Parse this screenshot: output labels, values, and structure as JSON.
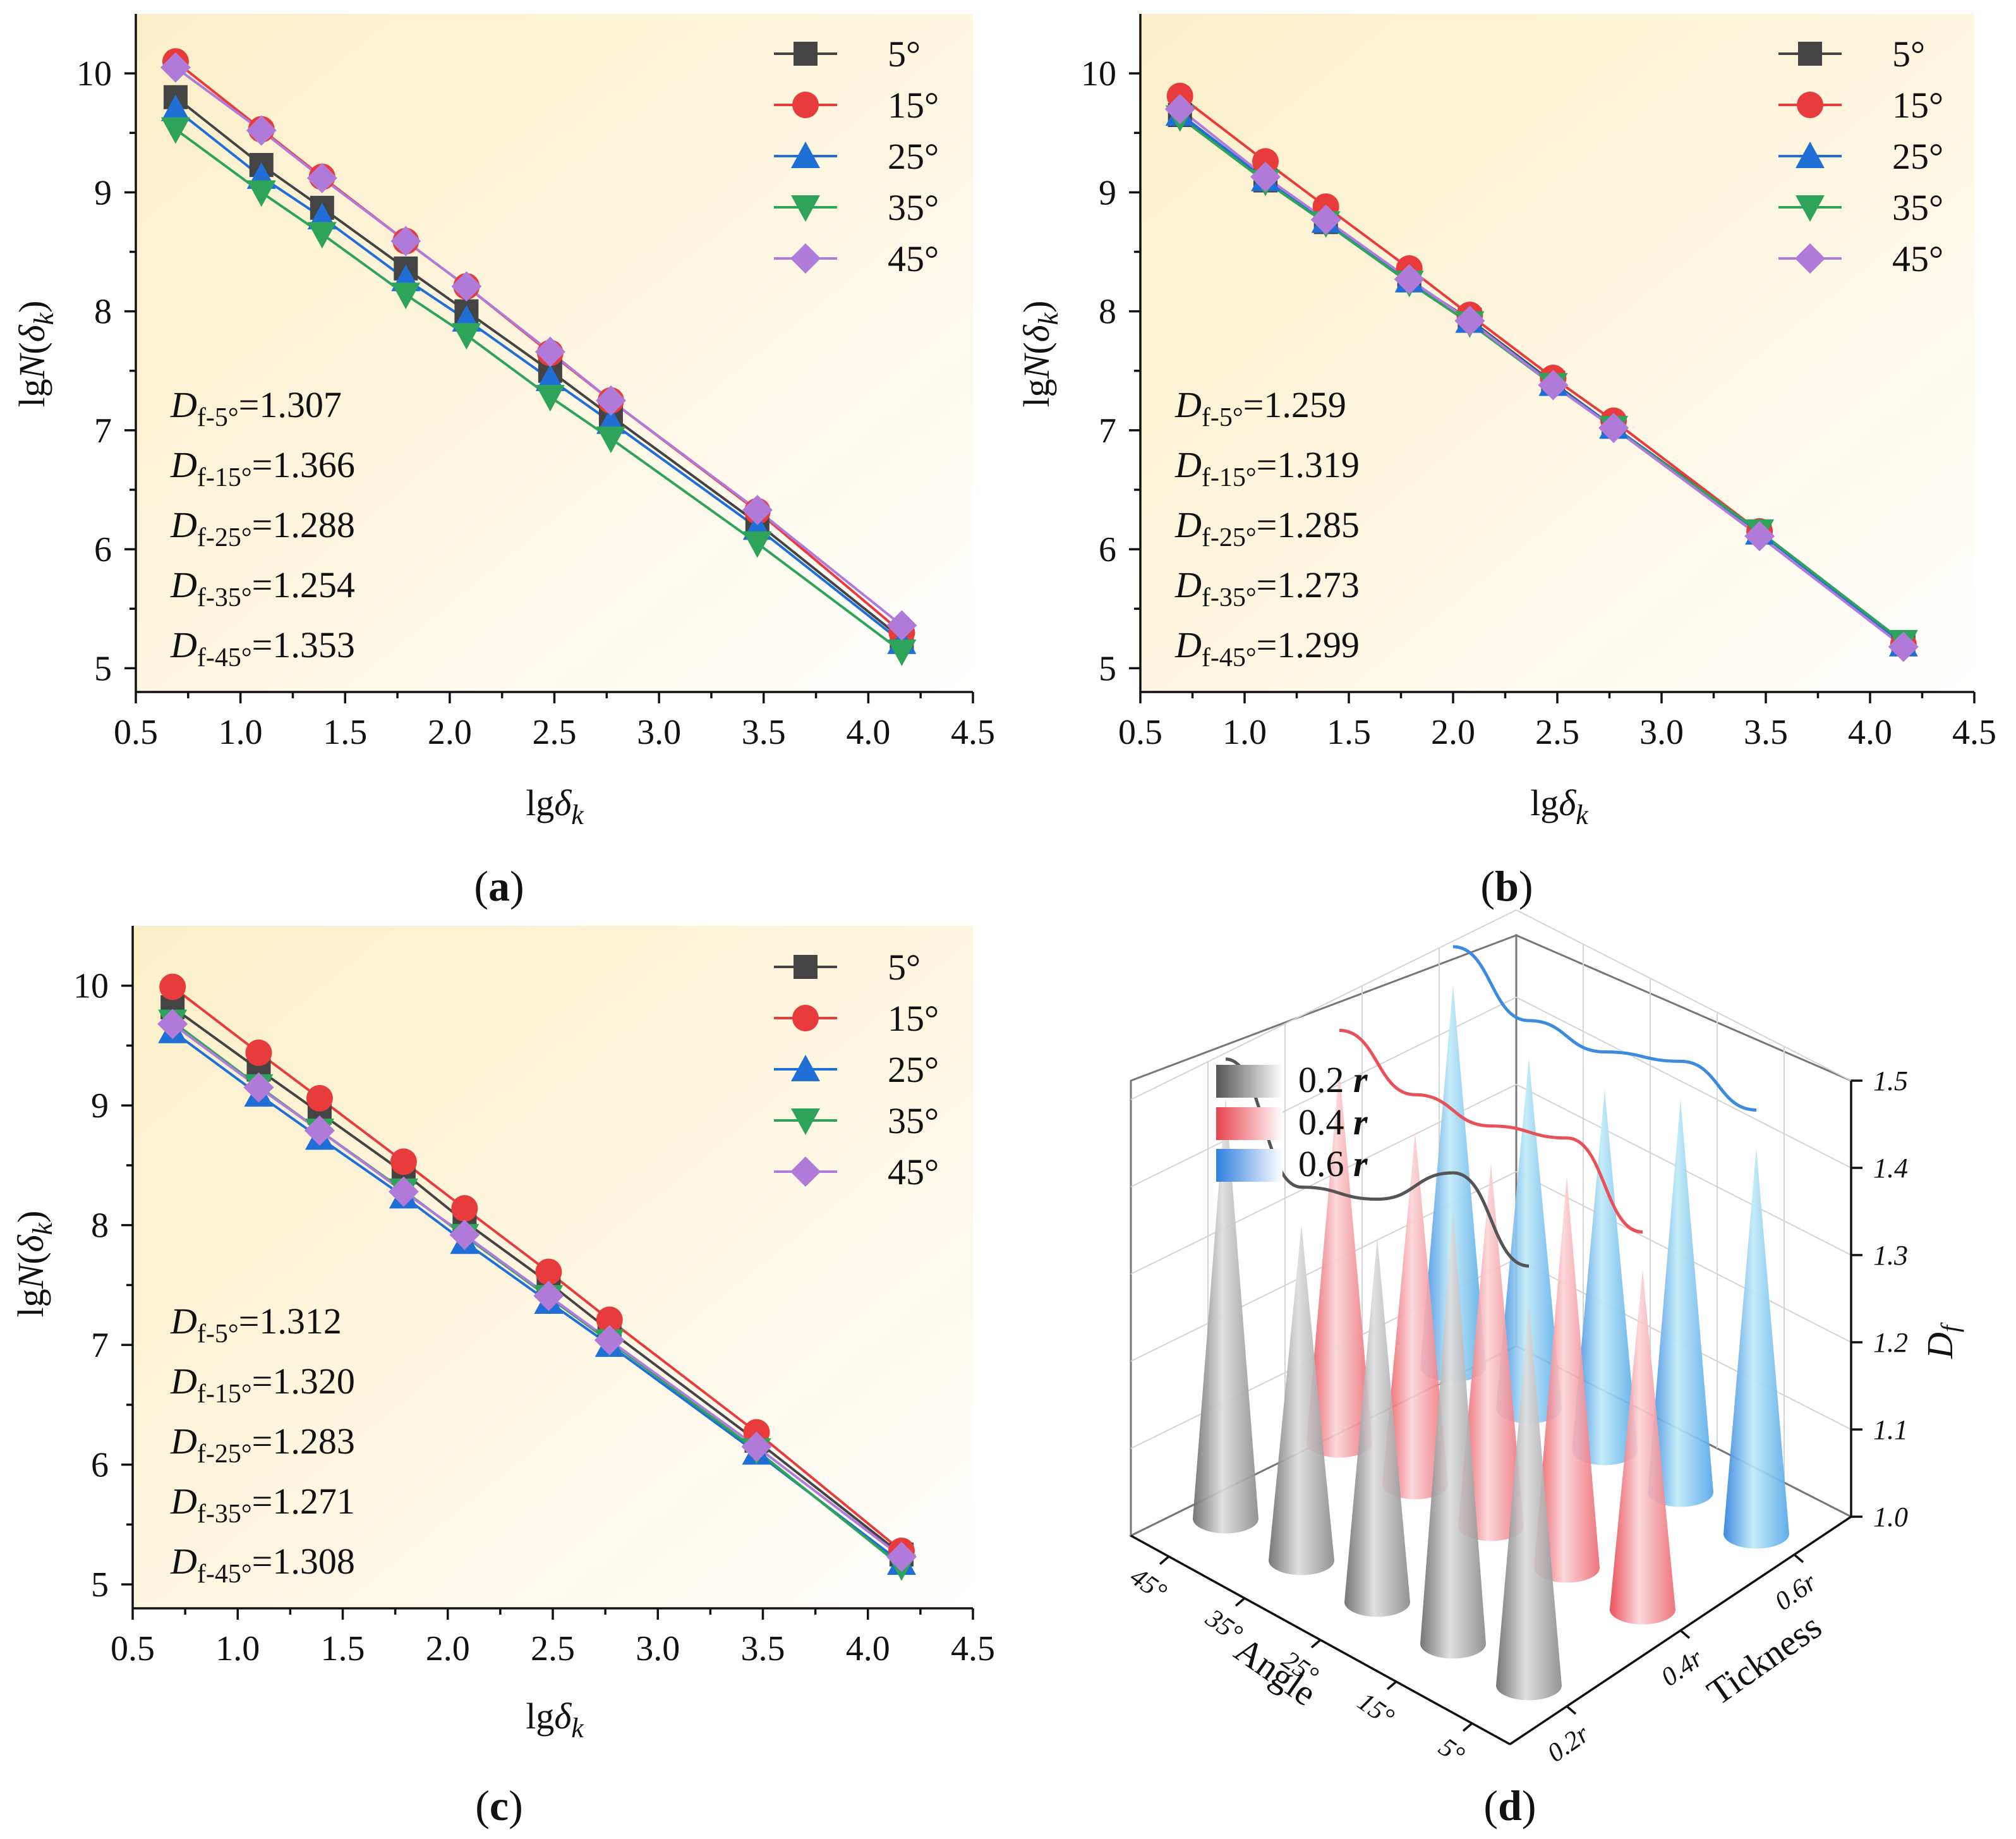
{
  "chart_data": [
    {
      "id": "a",
      "type": "line",
      "caption": "(a)",
      "xlabel": "lgδ_k",
      "ylabel": "lgN(δ_k)",
      "xlim": [
        0.5,
        4.5
      ],
      "ylim": [
        4.8,
        10.5
      ],
      "x_ticks": [
        "0.5",
        "1.0",
        "1.5",
        "2.0",
        "2.5",
        "3.0",
        "3.5",
        "4.0",
        "4.5"
      ],
      "y_ticks": [
        "5",
        "6",
        "7",
        "8",
        "9",
        "10"
      ],
      "x": [
        0.69,
        1.1,
        1.39,
        1.79,
        2.08,
        2.48,
        2.77,
        3.47,
        4.16
      ],
      "series": [
        {
          "name": "5°",
          "color": "#444444",
          "marker": "square",
          "values": [
            9.8,
            9.23,
            8.87,
            8.36,
            8.0,
            7.5,
            7.12,
            6.22,
            5.25
          ]
        },
        {
          "name": "15°",
          "color": "#e83b3b",
          "marker": "circle",
          "values": [
            10.1,
            9.53,
            9.13,
            8.59,
            8.21,
            7.65,
            7.25,
            6.32,
            5.3
          ]
        },
        {
          "name": "25°",
          "color": "#1f6fd6",
          "marker": "triangle-up",
          "values": [
            9.7,
            9.13,
            8.79,
            8.27,
            7.93,
            7.43,
            7.07,
            6.18,
            5.22
          ]
        },
        {
          "name": "35°",
          "color": "#2ea35a",
          "marker": "triangle-down",
          "values": [
            9.53,
            9.0,
            8.65,
            8.14,
            7.8,
            7.28,
            6.93,
            6.05,
            5.14
          ]
        },
        {
          "name": "45°",
          "color": "#b07ad9",
          "marker": "diamond",
          "values": [
            10.05,
            9.52,
            9.12,
            8.59,
            8.21,
            7.66,
            7.25,
            6.33,
            5.36
          ]
        }
      ],
      "df_labels": [
        {
          "sub": "f-5°",
          "value": "=1.307"
        },
        {
          "sub": "f-15°",
          "value": "=1.366"
        },
        {
          "sub": "f-25°",
          "value": "=1.288"
        },
        {
          "sub": "f-35°",
          "value": "=1.254"
        },
        {
          "sub": "f-45°",
          "value": "=1.353"
        }
      ]
    },
    {
      "id": "b",
      "type": "line",
      "caption": "(b)",
      "xlabel": "lgδ_k",
      "ylabel": "lgN(δ_k)",
      "xlim": [
        0.5,
        4.5
      ],
      "ylim": [
        4.8,
        10.5
      ],
      "x_ticks": [
        "0.5",
        "1.0",
        "1.5",
        "2.0",
        "2.5",
        "3.0",
        "3.5",
        "4.0",
        "4.5"
      ],
      "y_ticks": [
        "5",
        "6",
        "7",
        "8",
        "9",
        "10"
      ],
      "x": [
        0.69,
        1.1,
        1.39,
        1.79,
        2.08,
        2.48,
        2.77,
        3.47,
        4.16
      ],
      "series": [
        {
          "name": "5°",
          "color": "#444444",
          "marker": "square",
          "values": [
            9.65,
            9.1,
            8.75,
            8.26,
            7.93,
            7.4,
            7.03,
            6.15,
            5.22
          ]
        },
        {
          "name": "15°",
          "color": "#e83b3b",
          "marker": "circle",
          "values": [
            9.81,
            9.26,
            8.88,
            8.36,
            7.97,
            7.44,
            7.08,
            6.15,
            5.2
          ]
        },
        {
          "name": "25°",
          "color": "#1f6fd6",
          "marker": "triangle-up",
          "values": [
            9.66,
            9.11,
            8.76,
            8.26,
            7.92,
            7.39,
            7.03,
            6.14,
            5.2
          ]
        },
        {
          "name": "35°",
          "color": "#2ea35a",
          "marker": "triangle-down",
          "values": [
            9.63,
            9.09,
            8.74,
            8.24,
            7.9,
            7.38,
            7.02,
            6.15,
            5.22
          ]
        },
        {
          "name": "45°",
          "color": "#b07ad9",
          "marker": "diamond",
          "values": [
            9.7,
            9.13,
            8.77,
            8.27,
            7.92,
            7.38,
            7.02,
            6.11,
            5.18
          ]
        }
      ],
      "df_labels": [
        {
          "sub": "f-5°",
          "value": "=1.259"
        },
        {
          "sub": "f-15°",
          "value": "=1.319"
        },
        {
          "sub": "f-25°",
          "value": "=1.285"
        },
        {
          "sub": "f-35°",
          "value": "=1.273"
        },
        {
          "sub": "f-45°",
          "value": "=1.299"
        }
      ]
    },
    {
      "id": "c",
      "type": "line",
      "caption": "(c)",
      "xlabel": "lgδ_k",
      "ylabel": "lgN(δ_k)",
      "xlim": [
        0.5,
        4.5
      ],
      "ylim": [
        4.8,
        10.5
      ],
      "x_ticks": [
        "0.5",
        "1.0",
        "1.5",
        "2.0",
        "2.5",
        "3.0",
        "3.5",
        "4.0",
        "4.5"
      ],
      "y_ticks": [
        "5",
        "6",
        "7",
        "8",
        "9",
        "10"
      ],
      "x": [
        0.69,
        1.1,
        1.39,
        1.79,
        2.08,
        2.48,
        2.77,
        3.47,
        4.16
      ],
      "series": [
        {
          "name": "5°",
          "color": "#444444",
          "marker": "square",
          "values": [
            9.82,
            9.3,
            8.94,
            8.44,
            8.03,
            7.52,
            7.12,
            6.2,
            5.25
          ]
        },
        {
          "name": "15°",
          "color": "#e83b3b",
          "marker": "circle",
          "values": [
            9.99,
            9.44,
            9.06,
            8.53,
            8.14,
            7.61,
            7.21,
            6.27,
            5.28
          ]
        },
        {
          "name": "25°",
          "color": "#1f6fd6",
          "marker": "triangle-up",
          "values": [
            9.62,
            9.09,
            8.73,
            8.24,
            7.86,
            7.36,
            7.0,
            6.1,
            5.18
          ]
        },
        {
          "name": "35°",
          "color": "#2ea35a",
          "marker": "triangle-down",
          "values": [
            9.7,
            9.16,
            8.79,
            8.29,
            7.91,
            7.4,
            7.03,
            6.12,
            5.15
          ]
        },
        {
          "name": "45°",
          "color": "#b07ad9",
          "marker": "diamond",
          "values": [
            9.68,
            9.15,
            8.79,
            8.28,
            7.92,
            7.41,
            7.04,
            6.15,
            5.23
          ]
        }
      ],
      "df_labels": [
        {
          "sub": "f-5°",
          "value": "=1.312"
        },
        {
          "sub": "f-15°",
          "value": "=1.320"
        },
        {
          "sub": "f-25°",
          "value": "=1.283"
        },
        {
          "sub": "f-35°",
          "value": "=1.271"
        },
        {
          "sub": "f-45°",
          "value": "=1.308"
        }
      ]
    },
    {
      "id": "d",
      "type": "bar3d-cones",
      "caption": "(d)",
      "xlabel": "Angle",
      "ylabel": "Tickness",
      "zlabel": "D_f",
      "angle_ticks": [
        "45°",
        "35°",
        "25°",
        "15°",
        "5°"
      ],
      "thickness_ticks": [
        "0.2r",
        "0.4r",
        "0.6r"
      ],
      "z_ticks": [
        "1.0",
        "1.1",
        "1.2",
        "1.3",
        "1.4",
        "1.5"
      ],
      "zlim": [
        1.0,
        1.5
      ],
      "legend": [
        {
          "name": "0.2 ",
          "r": "r",
          "color": "#666666"
        },
        {
          "name": "0.4 ",
          "r": "r",
          "color": "#e8505a"
        },
        {
          "name": "0.6 ",
          "r": "r",
          "color": "#3d8be0"
        }
      ],
      "series": [
        {
          "name": "0.2 r",
          "color": "#555555",
          "values": {
            "45°": 1.353,
            "35°": 1.254,
            "25°": 1.288,
            "15°": 1.366,
            "5°": 1.307
          }
        },
        {
          "name": "0.4 r",
          "color": "#e8505a",
          "values": {
            "45°": 1.299,
            "35°": 1.273,
            "25°": 1.285,
            "15°": 1.319,
            "5°": 1.259
          }
        },
        {
          "name": "0.6 r",
          "color": "#3d8be0",
          "values": {
            "45°": 1.308,
            "35°": 1.271,
            "25°": 1.283,
            "15°": 1.32,
            "5°": 1.312
          }
        }
      ]
    }
  ]
}
